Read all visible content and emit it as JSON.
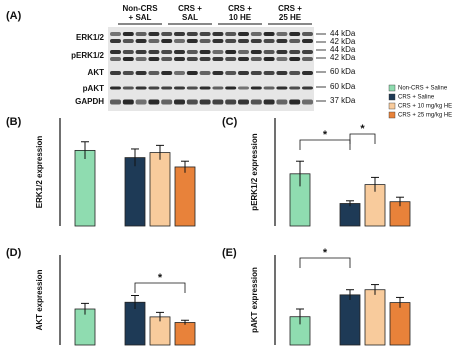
{
  "blot": {
    "panel": "(A)",
    "groups": [
      [
        "Non-CRS",
        "+ SAL"
      ],
      [
        "CRS +",
        "SAL"
      ],
      [
        "CRS +",
        "10 HE"
      ],
      [
        "CRS +",
        "25 HE"
      ]
    ],
    "rows": [
      "ERK1/2",
      "pERK1/2",
      "AKT",
      "pAKT",
      "GAPDH"
    ],
    "markers": [
      "44 kDa",
      "42 kDa",
      "44 kDa",
      "42 kDa",
      "60 kDa",
      "60 kDa",
      "37 kDa"
    ]
  },
  "legend": [
    {
      "name": "Non-CRS + Saline",
      "color": "#8fdcb0"
    },
    {
      "name": "CRS + Saline",
      "color": "#1e3a56"
    },
    {
      "name": "CRS + 10 mg/kg HE",
      "color": "#f8cb9c"
    },
    {
      "name": "CRS + 25 mg/kg HE",
      "color": "#e8823a"
    }
  ],
  "chart_data": [
    {
      "type": "bar",
      "panel": "(B)",
      "ylabel": "ERK1/2 expression",
      "values": [
        1.55,
        1.45,
        1.52,
        1.32
      ],
      "errors": [
        0.12,
        0.12,
        0.1,
        0.08
      ],
      "ylim": [
        0.5,
        2.0
      ],
      "annotations": []
    },
    {
      "type": "bar",
      "panel": "(C)",
      "ylabel": "pERK1/2 expression",
      "values": [
        0.78,
        0.45,
        0.66,
        0.47
      ],
      "errors": [
        0.14,
        0.03,
        0.08,
        0.05
      ],
      "ylim": [
        0.2,
        1.4
      ],
      "annotations": [
        "*",
        "*"
      ]
    },
    {
      "type": "bar",
      "panel": "(D)",
      "ylabel": "AKT expression",
      "values": [
        0.72,
        0.78,
        0.65,
        0.6
      ],
      "errors": [
        0.05,
        0.06,
        0.04,
        0.02
      ],
      "ylim": [
        0.4,
        1.2
      ],
      "annotations": [
        "*"
      ]
    },
    {
      "type": "bar",
      "panel": "(E)",
      "ylabel": "pAKT expression",
      "values": [
        0.21,
        0.295,
        0.315,
        0.265
      ],
      "errors": [
        0.03,
        0.02,
        0.02,
        0.02
      ],
      "ylim": [
        0.1,
        0.45
      ],
      "annotations": [
        "*"
      ]
    }
  ]
}
